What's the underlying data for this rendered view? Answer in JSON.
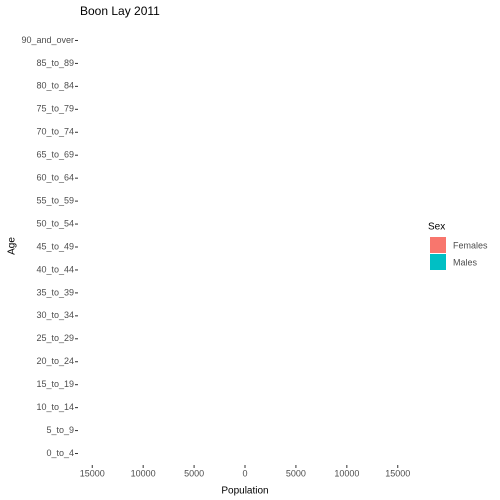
{
  "chart_data": {
    "type": "pyramid",
    "title": "Boon Lay  2011",
    "x_label": "Population",
    "y_label": "Age",
    "categories": [
      "0_to_4",
      "5_to_9",
      "10_to_14",
      "15_to_19",
      "20_to_24",
      "25_to_29",
      "30_to_34",
      "35_to_39",
      "40_to_44",
      "45_to_49",
      "50_to_54",
      "55_to_59",
      "60_to_64",
      "65_to_69",
      "70_to_74",
      "75_to_79",
      "80_to_84",
      "85_to_89",
      "90_and_over"
    ],
    "series": [
      {
        "name": "Females",
        "color": "#f8766d",
        "values": [
          0,
          0,
          0,
          0,
          0,
          0,
          0,
          0,
          0,
          0,
          0,
          0,
          0,
          0,
          0,
          0,
          0,
          0,
          0
        ]
      },
      {
        "name": "Males",
        "color": "#00bfc4",
        "values": [
          0,
          0,
          0,
          0,
          0,
          0,
          0,
          0,
          0,
          0,
          0,
          0,
          0,
          0,
          0,
          0,
          0,
          0,
          0
        ]
      }
    ],
    "legend_title": "Sex",
    "xlim": [
      -16400,
      16400
    ],
    "xticks": [
      {
        "value": -15000,
        "label": "15000"
      },
      {
        "value": -10000,
        "label": "10000"
      },
      {
        "value": -5000,
        "label": "5000"
      },
      0,
      5000,
      10000,
      15000
    ]
  }
}
